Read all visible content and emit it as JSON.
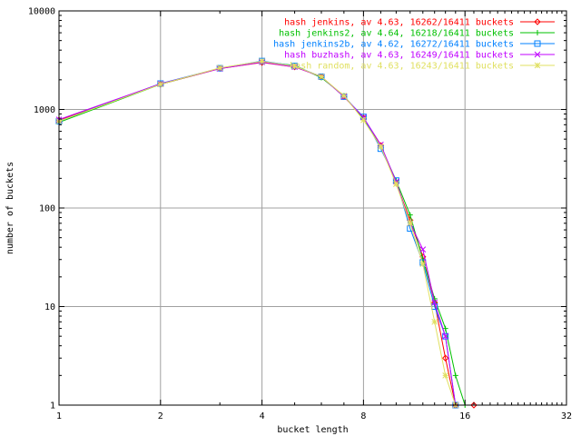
{
  "chart_data": {
    "type": "line",
    "title": "",
    "xlabel": "bucket length",
    "ylabel": "number of buckets",
    "x_scale": "log2",
    "y_scale": "log10",
    "xlim": [
      1,
      32
    ],
    "ylim": [
      1,
      10000
    ],
    "x_ticks": [
      1,
      2,
      4,
      8,
      16,
      32
    ],
    "y_ticks": [
      1,
      10,
      100,
      1000,
      10000
    ],
    "grid": true,
    "legend_position": "top-right",
    "series": [
      {
        "name": "hash jenkins, av 4.63, 16262/16411 buckets",
        "color": "#ff0000",
        "marker": "diamond",
        "points": [
          [
            1,
            780
          ],
          [
            2,
            1800
          ],
          [
            3,
            2600
          ],
          [
            4,
            3000
          ],
          [
            5,
            2700
          ],
          [
            6,
            2150
          ],
          [
            7,
            1350
          ],
          [
            8,
            820
          ],
          [
            9,
            430
          ],
          [
            10,
            180
          ],
          [
            11,
            75
          ],
          [
            12,
            32
          ],
          [
            13,
            11
          ],
          [
            14,
            3
          ],
          [
            15,
            1
          ],
          [
            17,
            1
          ]
        ]
      },
      {
        "name": "hash jenkins2, av 4.64, 16218/16411 buckets",
        "color": "#00c000",
        "marker": "plus",
        "points": [
          [
            1,
            740
          ],
          [
            2,
            1800
          ],
          [
            3,
            2620
          ],
          [
            4,
            3050
          ],
          [
            5,
            2800
          ],
          [
            6,
            2100
          ],
          [
            7,
            1380
          ],
          [
            8,
            800
          ],
          [
            9,
            420
          ],
          [
            10,
            190
          ],
          [
            11,
            85
          ],
          [
            12,
            30
          ],
          [
            13,
            12
          ],
          [
            14,
            6
          ],
          [
            15,
            2
          ],
          [
            16,
            1
          ]
        ]
      },
      {
        "name": "hash jenkins2b, av 4.62, 16272/16411 buckets",
        "color": "#0080ff",
        "marker": "square",
        "points": [
          [
            1,
            760
          ],
          [
            2,
            1830
          ],
          [
            3,
            2620
          ],
          [
            4,
            3100
          ],
          [
            5,
            2760
          ],
          [
            6,
            2150
          ],
          [
            7,
            1350
          ],
          [
            8,
            840
          ],
          [
            9,
            400
          ],
          [
            10,
            190
          ],
          [
            11,
            62
          ],
          [
            12,
            28
          ],
          [
            13,
            10
          ],
          [
            14,
            5
          ],
          [
            15,
            1
          ]
        ]
      },
      {
        "name": "hash buzhash, av 4.63, 16249/16411 buckets",
        "color": "#c000ff",
        "marker": "cross",
        "points": [
          [
            1,
            790
          ],
          [
            2,
            1820
          ],
          [
            3,
            2600
          ],
          [
            4,
            3020
          ],
          [
            5,
            2700
          ],
          [
            6,
            2150
          ],
          [
            7,
            1350
          ],
          [
            8,
            830
          ],
          [
            9,
            440
          ],
          [
            10,
            185
          ],
          [
            11,
            70
          ],
          [
            12,
            38
          ],
          [
            13,
            11
          ],
          [
            14,
            5
          ],
          [
            15,
            1
          ]
        ]
      },
      {
        "name": "hash random, av 4.63, 16243/16411 buckets",
        "color": "#e0e060",
        "marker": "star",
        "points": [
          [
            1,
            760
          ],
          [
            2,
            1800
          ],
          [
            3,
            2640
          ],
          [
            4,
            3080
          ],
          [
            5,
            2750
          ],
          [
            6,
            2150
          ],
          [
            7,
            1380
          ],
          [
            8,
            780
          ],
          [
            9,
            420
          ],
          [
            10,
            175
          ],
          [
            11,
            70
          ],
          [
            12,
            27
          ],
          [
            13,
            7
          ],
          [
            14,
            2
          ],
          [
            15,
            1
          ]
        ]
      }
    ]
  }
}
